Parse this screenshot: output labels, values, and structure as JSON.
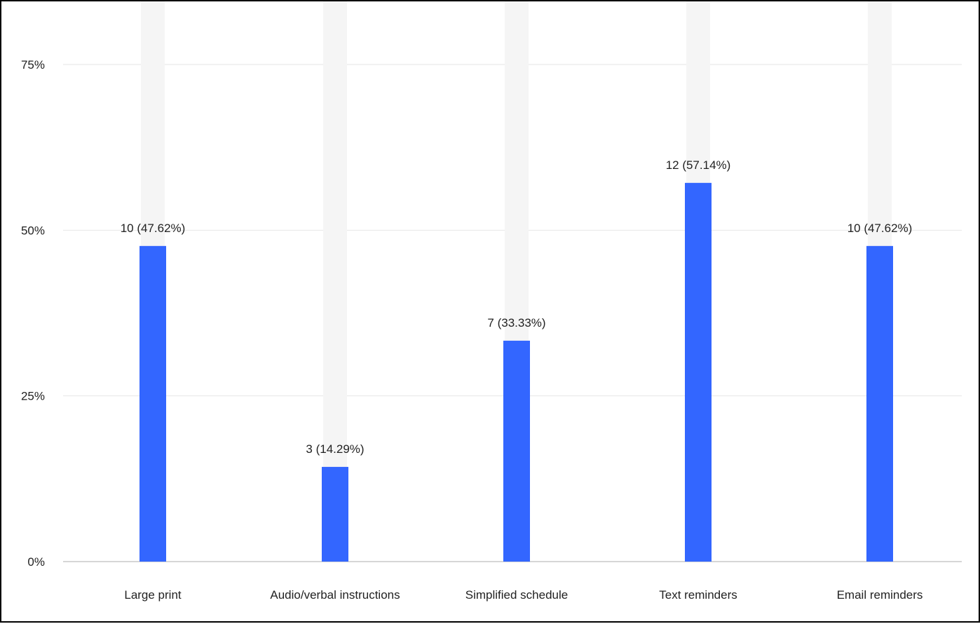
{
  "chart_data": {
    "type": "bar",
    "categories": [
      "Large print",
      "Audio/verbal instructions",
      "Simplified schedule",
      "Text reminders",
      "Email reminders"
    ],
    "values": [
      47.62,
      14.29,
      33.33,
      57.14,
      47.62
    ],
    "counts": [
      10,
      3,
      7,
      12,
      10
    ],
    "data_labels": [
      "10 (47.62%)",
      "3 (14.29%)",
      "7 (33.33%)",
      "12 (57.14%)",
      "10 (47.62%)"
    ],
    "title": "",
    "xlabel": "",
    "ylabel": "",
    "ylim": [
      0,
      75
    ],
    "yticks": [
      0,
      25,
      50,
      75
    ],
    "ytick_labels": [
      "0%",
      "25%",
      "50%",
      "75%"
    ],
    "grid": true,
    "legend": "none",
    "colors": {
      "bar": "#3366ff",
      "track": "#f5f5f5",
      "grid": "#e6e6e6",
      "axis": "#c8c8c8"
    }
  }
}
